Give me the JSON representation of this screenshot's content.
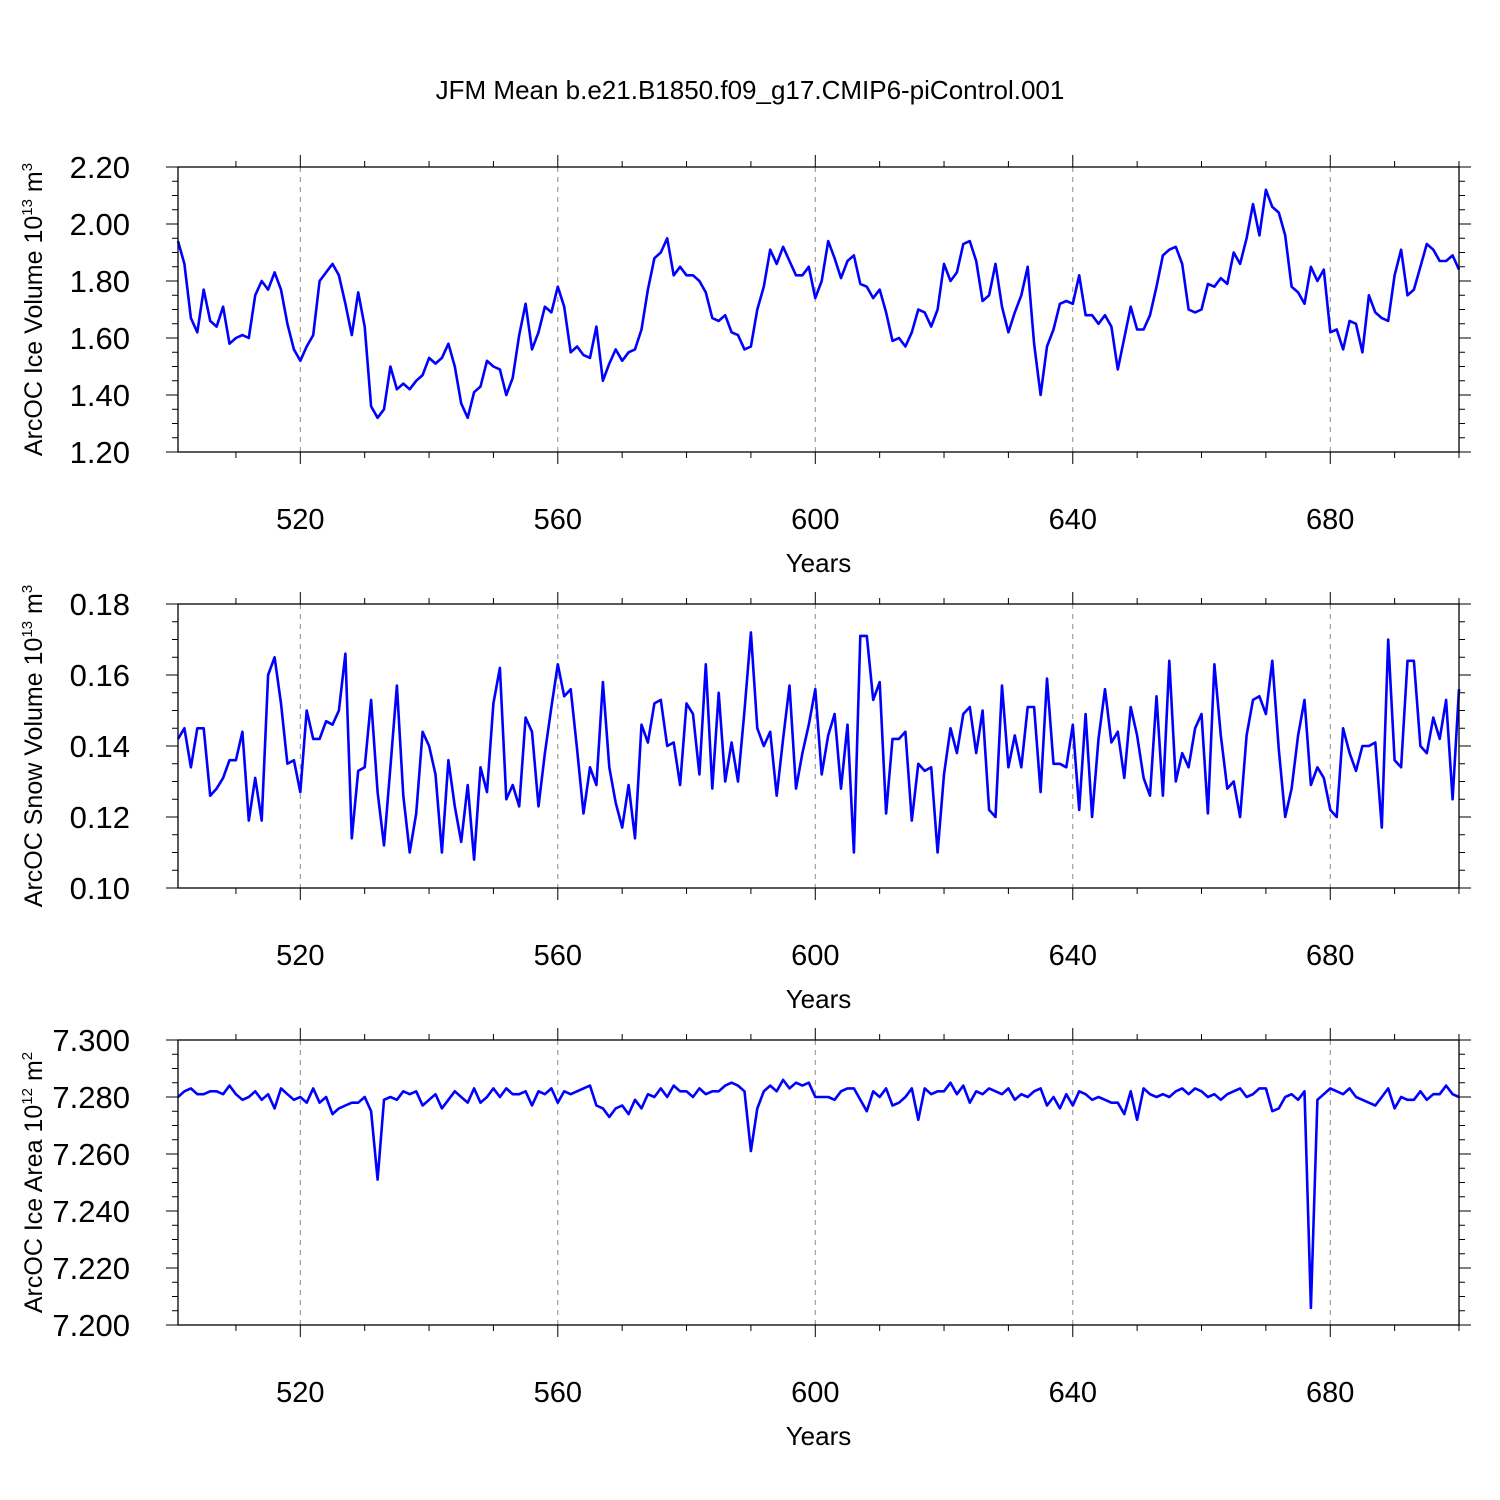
{
  "title": "JFM Mean b.e21.B1850.f09_g17.CMIP6-piControl.001",
  "colors": {
    "line": "#0000ff",
    "axis": "#000000",
    "grid": "#8a8a8a"
  },
  "chart_data": [
    {
      "type": "line",
      "title": "JFM Mean b.e21.B1850.f09_g17.CMIP6-piControl.001",
      "xlabel": "Years",
      "ylabel": "ArcOC Ice Volume 10",
      "ylabel_exp": "13",
      "ylabel_unit": " m",
      "ylabel_unit_exp": "3",
      "xlim": [
        501,
        700
      ],
      "ylim": [
        1.2,
        2.2
      ],
      "xticks": [
        520,
        560,
        600,
        640,
        680
      ],
      "xtick_labels": [
        "520",
        "560",
        "600",
        "640",
        "680"
      ],
      "yticks": [
        1.2,
        1.4,
        1.6,
        1.8,
        2.0,
        2.2
      ],
      "ytick_labels": [
        "1.20",
        "1.40",
        "1.60",
        "1.80",
        "2.00",
        "2.20"
      ],
      "grid": "vertical dashed at x ticks",
      "x_start": 501,
      "series": [
        {
          "name": "Ice Volume",
          "values": [
            1.94,
            1.86,
            1.67,
            1.62,
            1.77,
            1.66,
            1.64,
            1.71,
            1.58,
            1.6,
            1.61,
            1.6,
            1.75,
            1.8,
            1.77,
            1.83,
            1.77,
            1.65,
            1.56,
            1.52,
            1.57,
            1.61,
            1.8,
            1.83,
            1.86,
            1.82,
            1.72,
            1.61,
            1.76,
            1.64,
            1.36,
            1.32,
            1.35,
            1.5,
            1.42,
            1.44,
            1.42,
            1.45,
            1.47,
            1.53,
            1.51,
            1.53,
            1.58,
            1.5,
            1.37,
            1.32,
            1.41,
            1.43,
            1.52,
            1.5,
            1.49,
            1.4,
            1.46,
            1.61,
            1.72,
            1.56,
            1.62,
            1.71,
            1.69,
            1.78,
            1.71,
            1.55,
            1.57,
            1.54,
            1.53,
            1.64,
            1.45,
            1.51,
            1.56,
            1.52,
            1.55,
            1.56,
            1.63,
            1.77,
            1.88,
            1.9,
            1.95,
            1.82,
            1.85,
            1.82,
            1.82,
            1.8,
            1.76,
            1.67,
            1.66,
            1.68,
            1.62,
            1.61,
            1.56,
            1.57,
            1.7,
            1.78,
            1.91,
            1.86,
            1.92,
            1.87,
            1.82,
            1.82,
            1.85,
            1.74,
            1.8,
            1.94,
            1.88,
            1.81,
            1.87,
            1.89,
            1.79,
            1.78,
            1.74,
            1.77,
            1.69,
            1.59,
            1.6,
            1.57,
            1.62,
            1.7,
            1.69,
            1.64,
            1.7,
            1.86,
            1.8,
            1.83,
            1.93,
            1.94,
            1.87,
            1.73,
            1.75,
            1.86,
            1.71,
            1.62,
            1.69,
            1.75,
            1.85,
            1.58,
            1.4,
            1.57,
            1.63,
            1.72,
            1.73,
            1.72,
            1.82,
            1.68,
            1.68,
            1.65,
            1.68,
            1.64,
            1.49,
            1.6,
            1.71,
            1.63,
            1.63,
            1.68,
            1.78,
            1.89,
            1.91,
            1.92,
            1.86,
            1.7,
            1.69,
            1.7,
            1.79,
            1.78,
            1.81,
            1.79,
            1.9,
            1.86,
            1.95,
            2.07,
            1.96,
            2.12,
            2.06,
            2.04,
            1.96,
            1.78,
            1.76,
            1.72,
            1.85,
            1.8,
            1.84,
            1.62,
            1.63,
            1.56,
            1.66,
            1.65,
            1.55,
            1.75,
            1.69,
            1.67,
            1.66,
            1.82,
            1.91,
            1.75,
            1.77,
            1.85,
            1.93,
            1.91,
            1.87,
            1.87,
            1.89,
            1.84
          ]
        }
      ]
    },
    {
      "type": "line",
      "xlabel": "Years",
      "ylabel": "ArcOC Snow Volume 10",
      "ylabel_exp": "13",
      "ylabel_unit": " m",
      "ylabel_unit_exp": "3",
      "xlim": [
        501,
        700
      ],
      "ylim": [
        0.1,
        0.18
      ],
      "xticks": [
        520,
        560,
        600,
        640,
        680
      ],
      "xtick_labels": [
        "520",
        "560",
        "600",
        "640",
        "680"
      ],
      "yticks": [
        0.1,
        0.12,
        0.14,
        0.16,
        0.18
      ],
      "ytick_labels": [
        "0.10",
        "0.12",
        "0.14",
        "0.16",
        "0.18"
      ],
      "grid": "vertical dashed at x ticks",
      "x_start": 501,
      "series": [
        {
          "name": "Snow Volume",
          "values": [
            0.142,
            0.145,
            0.134,
            0.145,
            0.145,
            0.126,
            0.128,
            0.131,
            0.136,
            0.136,
            0.144,
            0.119,
            0.131,
            0.119,
            0.16,
            0.165,
            0.152,
            0.135,
            0.136,
            0.127,
            0.15,
            0.142,
            0.142,
            0.147,
            0.146,
            0.15,
            0.166,
            0.114,
            0.133,
            0.134,
            0.153,
            0.127,
            0.112,
            0.134,
            0.157,
            0.126,
            0.11,
            0.121,
            0.144,
            0.14,
            0.132,
            0.11,
            0.136,
            0.123,
            0.113,
            0.129,
            0.108,
            0.134,
            0.127,
            0.152,
            0.162,
            0.125,
            0.129,
            0.123,
            0.148,
            0.144,
            0.123,
            0.138,
            0.151,
            0.163,
            0.154,
            0.156,
            0.139,
            0.121,
            0.134,
            0.129,
            0.158,
            0.134,
            0.124,
            0.117,
            0.129,
            0.114,
            0.146,
            0.141,
            0.152,
            0.153,
            0.14,
            0.141,
            0.129,
            0.152,
            0.149,
            0.132,
            0.163,
            0.128,
            0.155,
            0.13,
            0.141,
            0.13,
            0.15,
            0.172,
            0.145,
            0.14,
            0.144,
            0.126,
            0.142,
            0.157,
            0.128,
            0.138,
            0.146,
            0.156,
            0.132,
            0.143,
            0.149,
            0.128,
            0.146,
            0.11,
            0.171,
            0.171,
            0.153,
            0.158,
            0.121,
            0.142,
            0.142,
            0.144,
            0.119,
            0.135,
            0.133,
            0.134,
            0.11,
            0.132,
            0.145,
            0.138,
            0.149,
            0.151,
            0.138,
            0.15,
            0.122,
            0.12,
            0.157,
            0.134,
            0.143,
            0.134,
            0.151,
            0.151,
            0.127,
            0.159,
            0.135,
            0.135,
            0.134,
            0.146,
            0.122,
            0.149,
            0.12,
            0.142,
            0.156,
            0.141,
            0.144,
            0.131,
            0.151,
            0.143,
            0.131,
            0.126,
            0.154,
            0.126,
            0.164,
            0.13,
            0.138,
            0.134,
            0.145,
            0.149,
            0.121,
            0.163,
            0.143,
            0.128,
            0.13,
            0.12,
            0.143,
            0.153,
            0.154,
            0.149,
            0.164,
            0.139,
            0.12,
            0.128,
            0.143,
            0.153,
            0.129,
            0.134,
            0.131,
            0.122,
            0.12,
            0.145,
            0.138,
            0.133,
            0.14,
            0.14,
            0.141,
            0.117,
            0.17,
            0.136,
            0.134,
            0.164,
            0.164,
            0.14,
            0.138,
            0.148,
            0.142,
            0.153,
            0.125,
            0.156
          ]
        }
      ]
    },
    {
      "type": "line",
      "xlabel": "Years",
      "ylabel": "ArcOC Ice Area 10",
      "ylabel_exp": "12",
      "ylabel_unit": " m",
      "ylabel_unit_exp": "2",
      "xlim": [
        501,
        700
      ],
      "ylim": [
        7.2,
        7.3
      ],
      "xticks": [
        520,
        560,
        600,
        640,
        680
      ],
      "xtick_labels": [
        "520",
        "560",
        "600",
        "640",
        "680"
      ],
      "yticks": [
        7.2,
        7.22,
        7.24,
        7.26,
        7.28,
        7.3
      ],
      "ytick_labels": [
        "7.200",
        "7.220",
        "7.240",
        "7.260",
        "7.280",
        "7.300"
      ],
      "grid": "vertical dashed at x ticks",
      "x_start": 501,
      "series": [
        {
          "name": "Ice Area",
          "values": [
            7.28,
            7.282,
            7.283,
            7.281,
            7.281,
            7.282,
            7.282,
            7.281,
            7.284,
            7.281,
            7.279,
            7.28,
            7.282,
            7.279,
            7.281,
            7.276,
            7.283,
            7.281,
            7.279,
            7.28,
            7.278,
            7.283,
            7.278,
            7.28,
            7.274,
            7.276,
            7.277,
            7.278,
            7.278,
            7.28,
            7.275,
            7.251,
            7.279,
            7.28,
            7.279,
            7.282,
            7.281,
            7.282,
            7.277,
            7.279,
            7.281,
            7.276,
            7.279,
            7.282,
            7.28,
            7.278,
            7.283,
            7.278,
            7.28,
            7.283,
            7.28,
            7.283,
            7.281,
            7.281,
            7.282,
            7.277,
            7.282,
            7.281,
            7.283,
            7.278,
            7.282,
            7.281,
            7.282,
            7.283,
            7.284,
            7.277,
            7.276,
            7.273,
            7.276,
            7.277,
            7.274,
            7.279,
            7.276,
            7.281,
            7.28,
            7.283,
            7.28,
            7.284,
            7.282,
            7.282,
            7.28,
            7.283,
            7.281,
            7.282,
            7.282,
            7.284,
            7.285,
            7.284,
            7.282,
            7.261,
            7.276,
            7.282,
            7.284,
            7.282,
            7.286,
            7.283,
            7.285,
            7.284,
            7.285,
            7.28,
            7.28,
            7.28,
            7.279,
            7.282,
            7.283,
            7.283,
            7.279,
            7.275,
            7.282,
            7.28,
            7.283,
            7.277,
            7.278,
            7.28,
            7.283,
            7.272,
            7.283,
            7.281,
            7.282,
            7.282,
            7.285,
            7.281,
            7.284,
            7.278,
            7.282,
            7.281,
            7.283,
            7.282,
            7.281,
            7.283,
            7.279,
            7.281,
            7.28,
            7.282,
            7.283,
            7.277,
            7.28,
            7.276,
            7.281,
            7.277,
            7.282,
            7.281,
            7.279,
            7.28,
            7.279,
            7.278,
            7.278,
            7.274,
            7.282,
            7.272,
            7.283,
            7.281,
            7.28,
            7.281,
            7.28,
            7.282,
            7.283,
            7.281,
            7.283,
            7.282,
            7.28,
            7.281,
            7.279,
            7.281,
            7.282,
            7.283,
            7.28,
            7.281,
            7.283,
            7.283,
            7.275,
            7.276,
            7.28,
            7.281,
            7.279,
            7.282,
            7.206,
            7.279,
            7.281,
            7.283,
            7.282,
            7.281,
            7.283,
            7.28,
            7.279,
            7.278,
            7.277,
            7.28,
            7.283,
            7.276,
            7.28,
            7.279,
            7.279,
            7.282,
            7.279,
            7.281,
            7.281,
            7.284,
            7.281,
            7.28
          ]
        }
      ]
    }
  ]
}
